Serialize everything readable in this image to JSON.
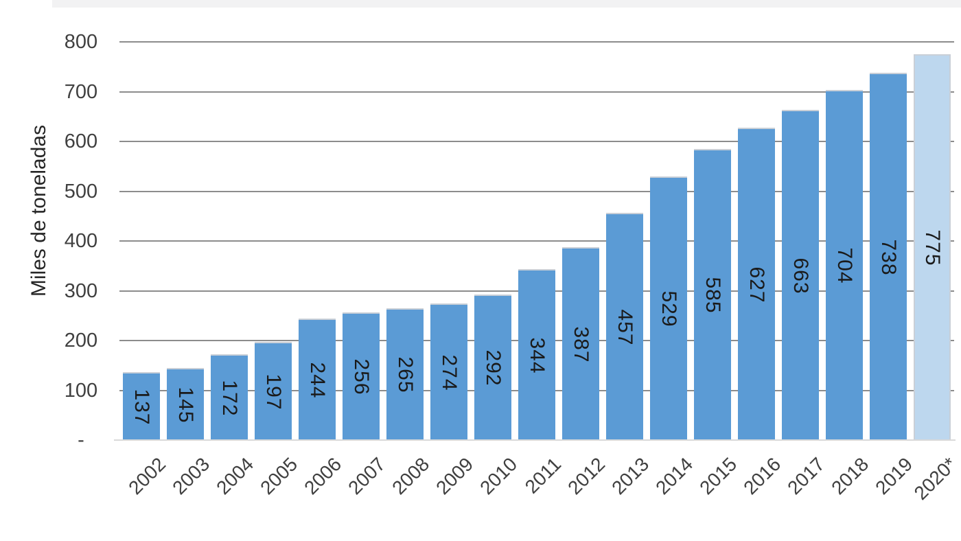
{
  "chart_data": {
    "type": "bar",
    "title": "",
    "xlabel": "",
    "ylabel": "Miles de toneladas",
    "categories": [
      "2002",
      "2003",
      "2004",
      "2005",
      "2006",
      "2007",
      "2008",
      "2009",
      "2010",
      "2011",
      "2012",
      "2013",
      "2014",
      "2015",
      "2016",
      "2017",
      "2018",
      "2019",
      "2020*"
    ],
    "values": [
      137,
      145,
      172,
      197,
      244,
      256,
      265,
      274,
      292,
      344,
      387,
      457,
      529,
      585,
      627,
      663,
      704,
      738,
      775
    ],
    "ylim": [
      0,
      800
    ],
    "ytick_values": [
      800,
      700,
      600,
      500,
      400,
      300,
      200,
      100,
      0
    ],
    "ytick_labels": [
      "800",
      "700",
      "600",
      "500",
      "400",
      "300",
      "200",
      "100",
      "-"
    ],
    "grid": true,
    "legend_position": "none",
    "value_labels": "inside-vertical",
    "highlighted_category": "2020*",
    "colors": {
      "bar": "#5B9BD5",
      "highlighted_bar": "#BDD7EE",
      "gridline": "#8C8C8C",
      "axis_line": "#D9D9D9",
      "tick_text": "#404040",
      "value_label_text": "#1A1A1A"
    }
  }
}
